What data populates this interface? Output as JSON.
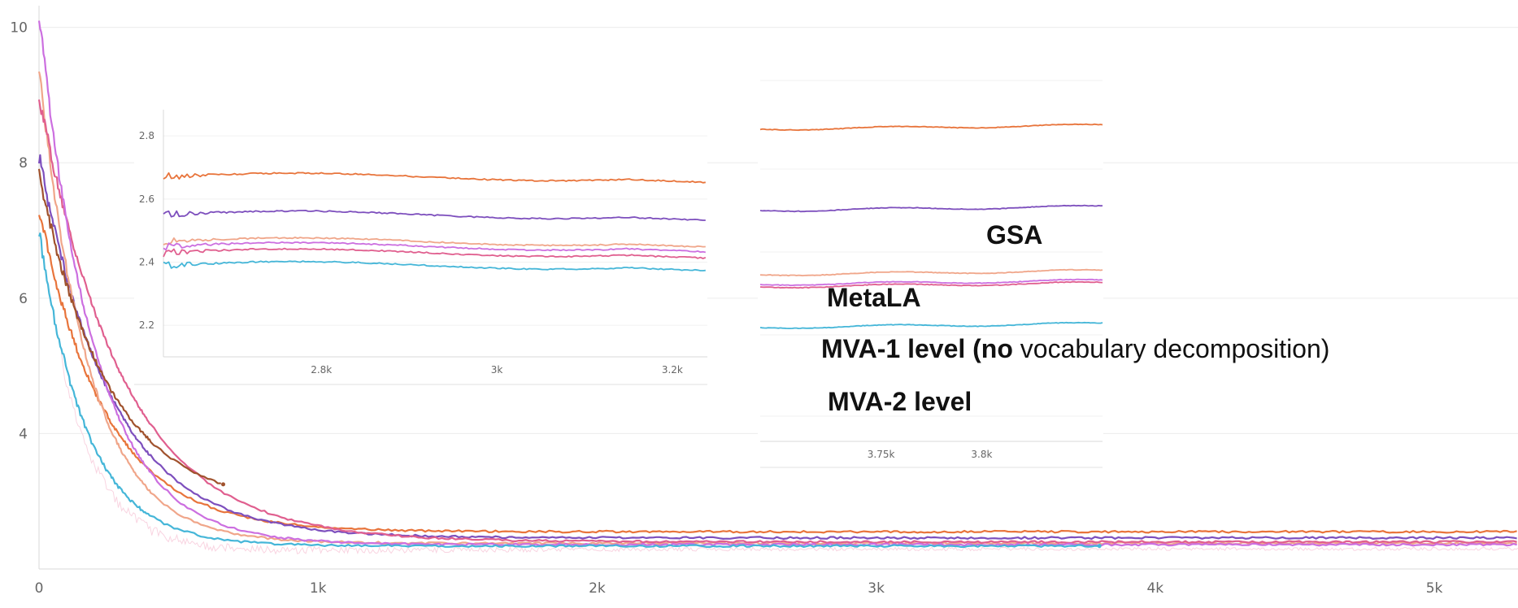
{
  "chart_data": [
    {
      "type": "line",
      "xlim": [
        0,
        5300
      ],
      "ylim": [
        2.0,
        10.2
      ],
      "x_ticks": [
        {
          "value": 0,
          "label": "0"
        },
        {
          "value": 1000,
          "label": "1k"
        },
        {
          "value": 2000,
          "label": "2k"
        },
        {
          "value": 3000,
          "label": "3k"
        },
        {
          "value": 4000,
          "label": "4k"
        },
        {
          "value": 5000,
          "label": "5k"
        }
      ],
      "y_ticks": [
        {
          "value": 4,
          "label": "4"
        },
        {
          "value": 6,
          "label": "6"
        },
        {
          "value": 8,
          "label": "8"
        },
        {
          "value": 10,
          "label": "10"
        }
      ],
      "grid": true,
      "series": [
        {
          "color": "#e8743b",
          "start": 7.3,
          "end": 2.55,
          "x_end": 5300,
          "k": 240
        },
        {
          "color": "#7d4fbd",
          "start": 8.1,
          "end": 2.46,
          "x_end": 5300,
          "k": 260
        },
        {
          "color": "#f0a68a",
          "start": 9.4,
          "end": 2.38,
          "x_end": 5300,
          "k": 180
        },
        {
          "color": "#e05f8f",
          "start": 9.0,
          "end": 2.4,
          "x_end": 5300,
          "k": 300
        },
        {
          "color": "#cc6fe0",
          "start": 10.2,
          "end": 2.36,
          "x_end": 5300,
          "k": 200
        },
        {
          "color": "#a0522d",
          "start": 7.8,
          "end": 2.9,
          "x_end": 660,
          "k": 250
        },
        {
          "color": "#45b6d8",
          "start": 7.0,
          "end": 2.34,
          "x_end": 3800,
          "k": 170
        }
      ]
    },
    {
      "type": "line",
      "xlim": [
        2620,
        3240
      ],
      "ylim": [
        2.1,
        2.87
      ],
      "x_ticks": [
        {
          "value": 2800,
          "label": "2.8k"
        },
        {
          "value": 3000,
          "label": "3k"
        },
        {
          "value": 3200,
          "label": "3.2k"
        }
      ],
      "y_ticks": [
        {
          "value": 2.2,
          "label": "2.2"
        },
        {
          "value": 2.4,
          "label": "2.4"
        },
        {
          "value": 2.6,
          "label": "2.6"
        },
        {
          "value": 2.8,
          "label": "2.8"
        }
      ],
      "grid": true,
      "series": [
        {
          "color": "#e8743b",
          "level": 2.67
        },
        {
          "color": "#7d4fbd",
          "level": 2.55
        },
        {
          "color": "#f0a68a",
          "level": 2.465
        },
        {
          "color": "#cc6fe0",
          "level": 2.45
        },
        {
          "color": "#e05f8f",
          "level": 2.43
        },
        {
          "color": "#45b6d8",
          "level": 2.39
        }
      ]
    },
    {
      "type": "line",
      "xlim": [
        3690,
        3860
      ],
      "x_ticks": [
        {
          "value": 3750,
          "label": "3.75k"
        },
        {
          "value": 3800,
          "label": "3.8k"
        }
      ],
      "grid": true,
      "series": [
        {
          "color": "#e8743b",
          "level_px": 159
        },
        {
          "color": "#7d4fbd",
          "level_px": 259
        },
        {
          "color": "#f0a68a",
          "level_px": 338
        },
        {
          "color": "#cc6fe0",
          "level_px": 350
        },
        {
          "color": "#e05f8f",
          "level_px": 353
        },
        {
          "color": "#45b6d8",
          "level_px": 403
        }
      ],
      "annotations": [
        {
          "bold": "GSA",
          "normal": ""
        },
        {
          "bold": "MetaLA",
          "normal": ""
        },
        {
          "bold": "MVA-1 level (no",
          "normal": " vocabulary decomposition)"
        },
        {
          "bold": "MVA-2 level",
          "normal": ""
        }
      ]
    }
  ]
}
